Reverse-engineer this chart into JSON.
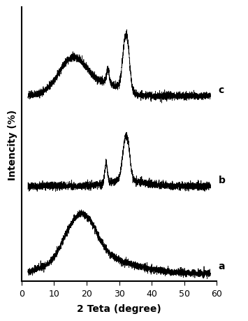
{
  "xlabel": "2 Teta (degree)",
  "ylabel": "Intencity (%)",
  "xlim": [
    0,
    60
  ],
  "xticks": [
    0,
    10,
    20,
    30,
    40,
    50,
    60
  ],
  "background_color": "#ffffff",
  "label_fontsize": 10,
  "tick_fontsize": 9,
  "line_color": "#000000",
  "labels": [
    "a",
    "b",
    "c"
  ],
  "seed": 42,
  "figsize": [
    3.55,
    4.6
  ],
  "dpi": 100
}
